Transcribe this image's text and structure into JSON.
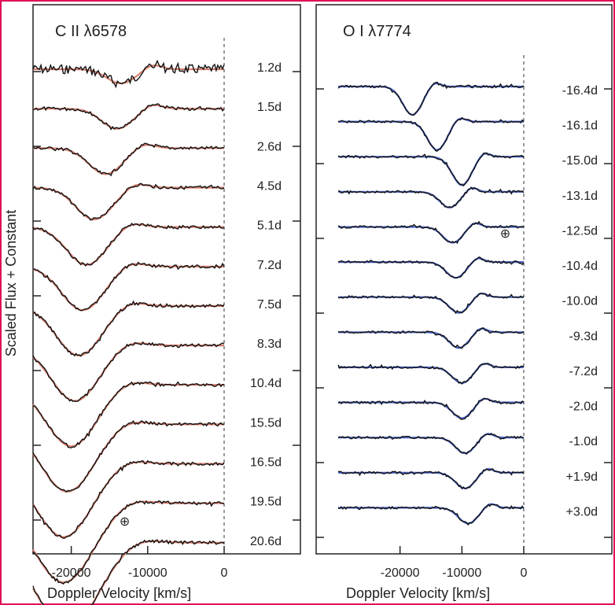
{
  "figure": {
    "ylabel": "Scaled Flux + Constant",
    "xlabel": "Doppler Velocity [km/s]"
  },
  "colors": {
    "observed": "#111111",
    "model_left": "#d98070",
    "model_right": "#4a63c8",
    "frame": "#e0105a"
  },
  "chart_data": [
    {
      "type": "line",
      "title": "C II λ6578",
      "xlabel": "Doppler Velocity [km/s]",
      "ylabel": "Scaled Flux + Constant",
      "xlim": [
        -25000,
        0
      ],
      "xticks": [
        -20000,
        -10000,
        0
      ],
      "epochs": [
        "1.2d",
        "1.5d",
        "2.6d",
        "4.5d",
        "5.1d",
        "7.2d",
        "7.5d",
        "8.3d",
        "10.4d",
        "15.5d",
        "16.5d",
        "19.5d",
        "20.6d"
      ],
      "absorption_min_velocity_kms": [
        -13500,
        -14000,
        -15500,
        -17000,
        -18000,
        -18500,
        -19000,
        -19500,
        -20000,
        -20500,
        -21000,
        -21000,
        -20500
      ],
      "telluric_marker_velocity_kms": -13000,
      "telluric_marker_glyph": "⊕",
      "grid": false
    },
    {
      "type": "line",
      "title": "O I λ7774",
      "xlabel": "Doppler Velocity [km/s]",
      "ylabel": "",
      "xlim": [
        -30000,
        0
      ],
      "xticks": [
        -20000,
        -10000,
        0
      ],
      "epochs": [
        "-16.4d",
        "-16.1d",
        "-15.0d",
        "-13.1d",
        "-12.5d",
        "-10.4d",
        "-10.0d",
        "-9.3d",
        "-7.2d",
        "-2.0d",
        "-1.0d",
        "+1.9d",
        "+3.0d"
      ],
      "absorption_min_velocity_kms": [
        -18000,
        -14000,
        -10000,
        -12000,
        -11500,
        -11000,
        -10500,
        -10500,
        -10000,
        -10000,
        -9500,
        -9500,
        -9000
      ],
      "telluric_marker_velocity_kms": -3000,
      "telluric_marker_glyph": "⊕",
      "grid": false
    }
  ]
}
